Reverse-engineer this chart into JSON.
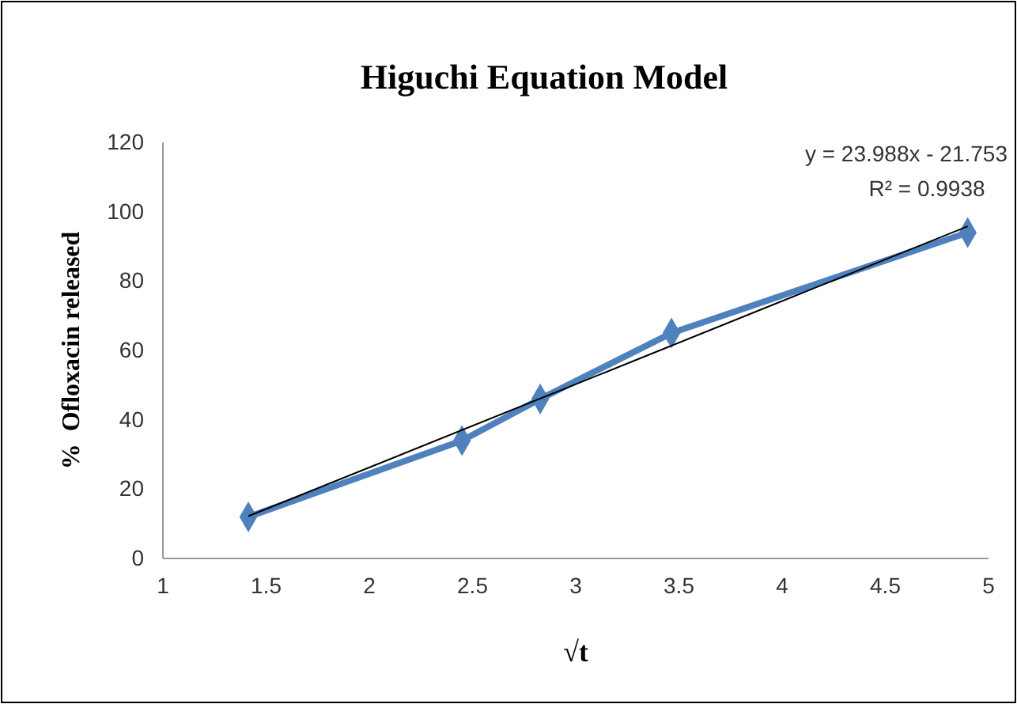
{
  "chart_data": {
    "type": "line",
    "title": "Higuchi Equation Model",
    "xlabel": "√t",
    "ylabel": "%  Ofloxacin released",
    "x": [
      1.414,
      2.449,
      2.828,
      3.464,
      4.899
    ],
    "series": [
      {
        "color": "#4f81bd",
        "values": [
          12,
          34,
          46,
          65,
          94
        ],
        "marker": "diamond"
      },
      {
        "type": "line",
        "color": "#000000",
        "x": [
          1.414,
          4.899
        ],
        "values": [
          12.2,
          95.8
        ],
        "marker": "none"
      }
    ],
    "xlim": [
      1,
      5
    ],
    "xticks": [
      1,
      1.5,
      2,
      2.5,
      3,
      3.5,
      4,
      4.5,
      5
    ],
    "ylim": [
      0,
      120
    ],
    "yticks": [
      0,
      20,
      40,
      60,
      80,
      100,
      120
    ],
    "grid": false,
    "annotations": [
      "y = 23.988x - 21.753",
      "R² = 0.9938"
    ]
  }
}
